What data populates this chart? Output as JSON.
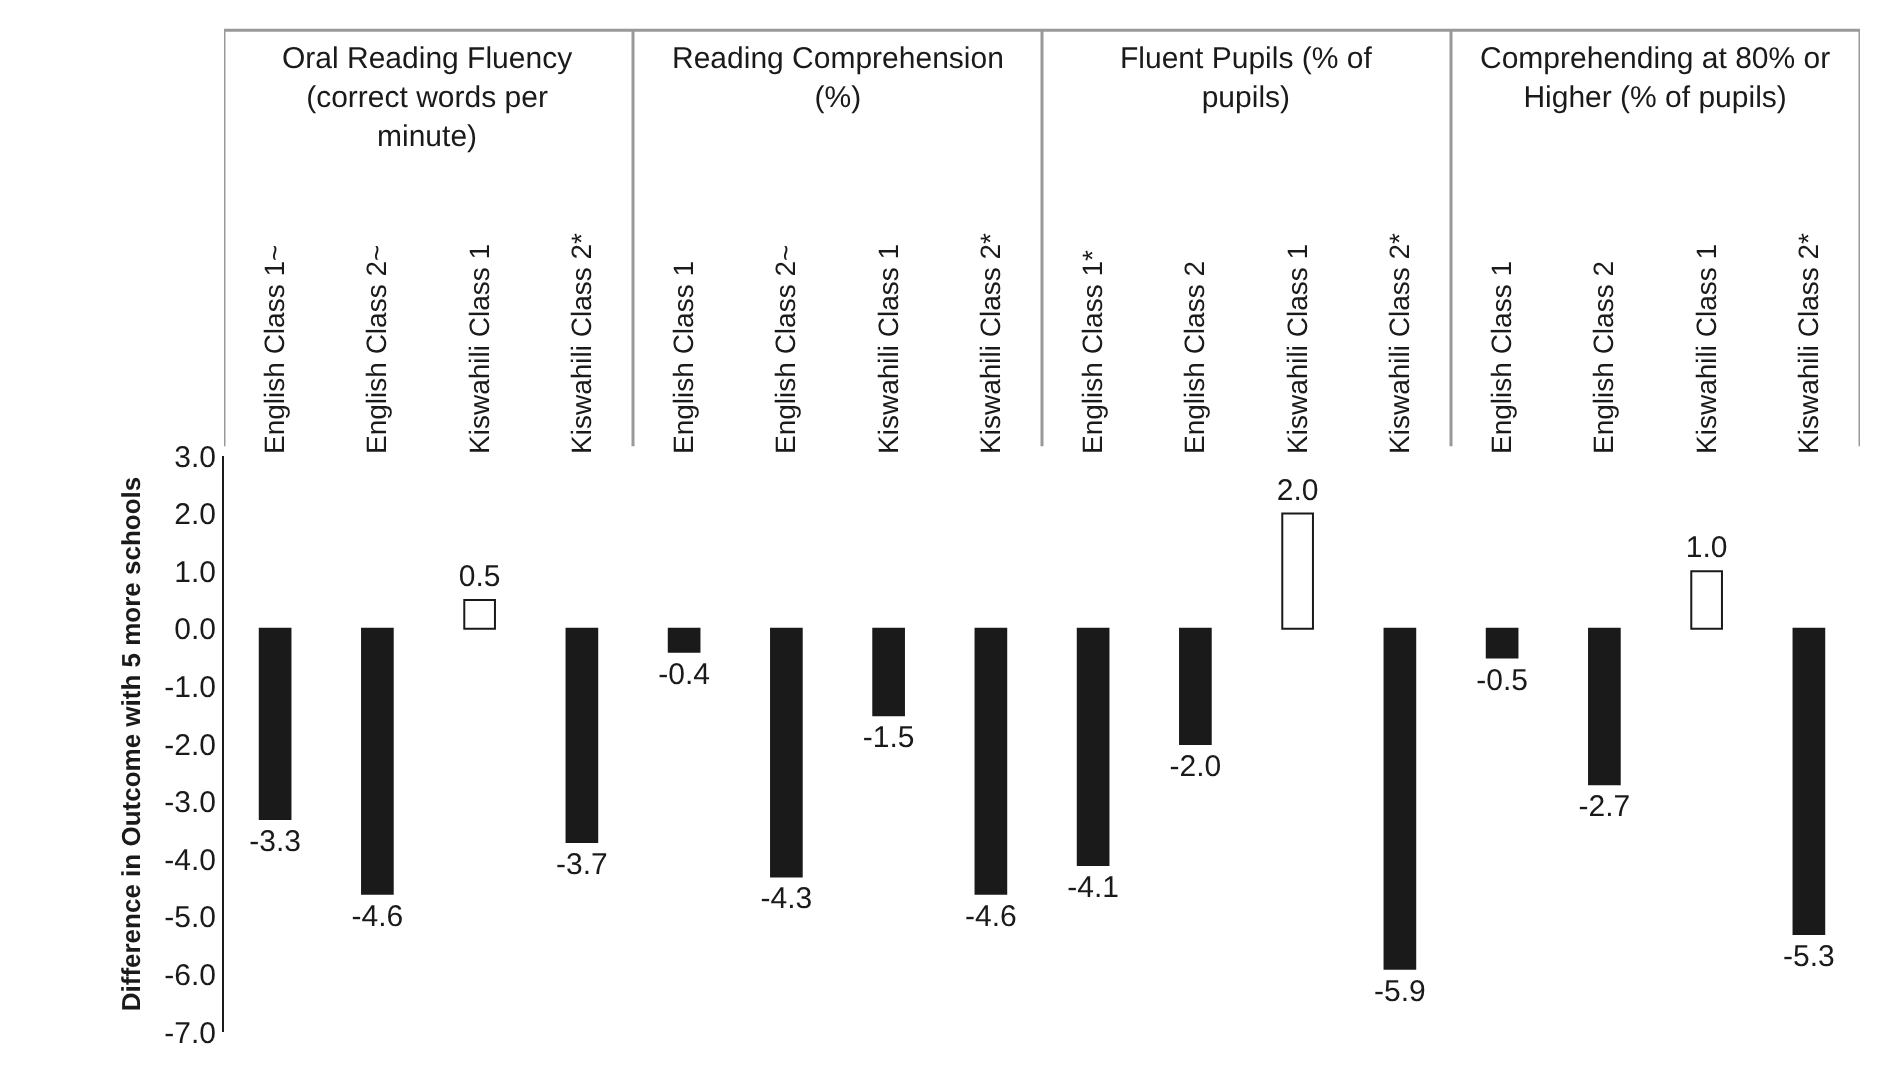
{
  "chart_data": {
    "type": "bar",
    "ylabel": "Difference in Outcome with 5 more schools",
    "annotations": [
      "Oral Reading Fluency (correct words per minute)",
      "Reading Comprehension (%)",
      "Fluent Pupils (% of pupils)",
      "Comprehending at 80% or Higher (% of pupils)"
    ],
    "categories": [
      "English Class 1~",
      "English Class 2~",
      "Kiswahili Class 1",
      "Kiswahili Class 2*",
      "English Class 1",
      "English Class 2~",
      "Kiswahili Class 1",
      "Kiswahili Class 2*",
      "English Class 1*",
      "English Class 2",
      "Kiswahili Class 1",
      "Kiswahili Class 2*",
      "English Class 1",
      "English Class 2",
      "Kiswahili Class 1",
      "Kiswahili Class 2*"
    ],
    "values": [
      -3.3,
      -4.6,
      0.5,
      -3.7,
      -0.4,
      -4.3,
      -1.5,
      -4.6,
      -4.1,
      -2.0,
      2.0,
      -5.9,
      -0.5,
      -2.7,
      1.0,
      -5.3
    ],
    "colors": [
      "#1a1a1a",
      "#1a1a1a",
      "#ffffff",
      "#1a1a1a",
      "#1a1a1a",
      "#1a1a1a",
      "#1a1a1a",
      "#1a1a1a",
      "#1a1a1a",
      "#1a1a1a",
      "#ffffff",
      "#1a1a1a",
      "#1a1a1a",
      "#1a1a1a",
      "#ffffff",
      "#1a1a1a"
    ],
    "ylim": [
      -7,
      3
    ],
    "yticks": [
      {
        "value": 3,
        "label": "3.0"
      },
      {
        "value": 2,
        "label": "2.0"
      },
      {
        "value": 1,
        "label": "1.0"
      },
      {
        "value": 0,
        "label": "0.0"
      },
      {
        "value": -1,
        "label": "-1.0"
      },
      {
        "value": -2,
        "label": "-2.0"
      },
      {
        "value": -3,
        "label": "-3.0"
      },
      {
        "value": -4,
        "label": "-4.0"
      },
      {
        "value": -5,
        "label": "-5.0"
      },
      {
        "value": -6,
        "label": "-6.0"
      },
      {
        "value": -7,
        "label": "-7.0"
      }
    ],
    "value_labels": [
      "-3.3",
      "-4.6",
      "0.5",
      "-3.7",
      "-0.4",
      "-4.3",
      "-1.5",
      "-4.6",
      "-4.1",
      "-2.0",
      "2.0",
      "-5.9",
      "-0.5",
      "-2.7",
      "1.0",
      "-5.3"
    ],
    "grid": false
  }
}
